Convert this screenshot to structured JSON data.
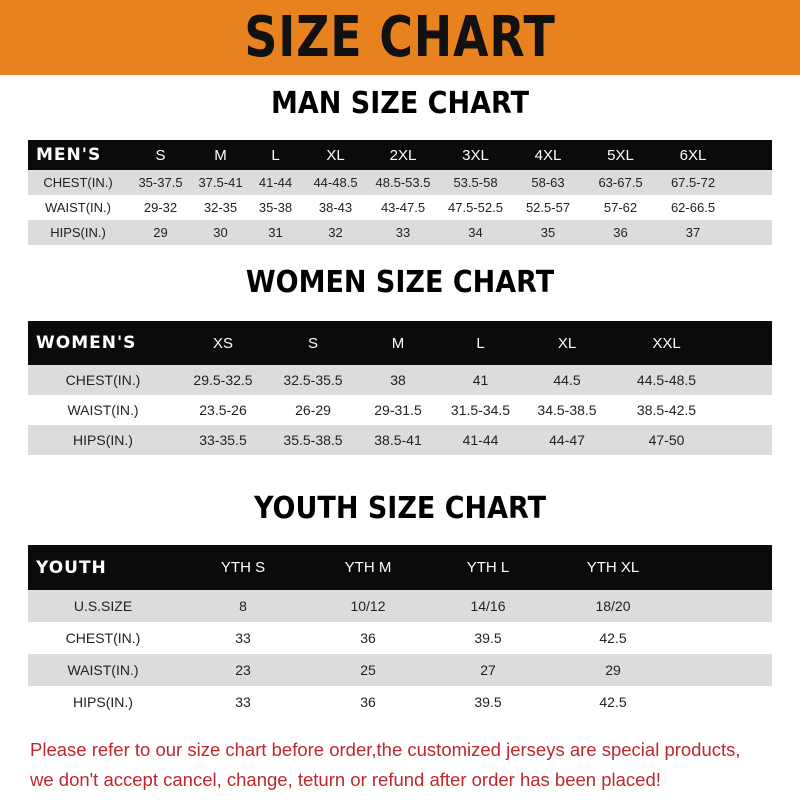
{
  "title": "SIZE CHART",
  "men": {
    "title": "MAN SIZE CHART",
    "header": [
      "MEN'S",
      "S",
      "M",
      "L",
      "XL",
      "2XL",
      "3XL",
      "4XL",
      "5XL",
      "6XL"
    ],
    "rows": [
      [
        "CHEST(IN.)",
        "35-37.5",
        "37.5-41",
        "41-44",
        "44-48.5",
        "48.5-53.5",
        "53.5-58",
        "58-63",
        "63-67.5",
        "67.5-72"
      ],
      [
        "WAIST(IN.)",
        "29-32",
        "32-35",
        "35-38",
        "38-43",
        "43-47.5",
        "47.5-52.5",
        "52.5-57",
        "57-62",
        "62-66.5"
      ],
      [
        "HIPS(IN.)",
        "29",
        "30",
        "31",
        "32",
        "33",
        "34",
        "35",
        "36",
        "37"
      ]
    ]
  },
  "women": {
    "title": "WOMEN SIZE CHART",
    "header": [
      "WOMEN'S",
      "XS",
      "S",
      "M",
      "L",
      "XL",
      "XXL"
    ],
    "rows": [
      [
        "CHEST(IN.)",
        "29.5-32.5",
        "32.5-35.5",
        "38",
        "41",
        "44.5",
        "44.5-48.5"
      ],
      [
        "WAIST(IN.)",
        "23.5-26",
        "26-29",
        "29-31.5",
        "31.5-34.5",
        "34.5-38.5",
        "38.5-42.5"
      ],
      [
        "HIPS(IN.)",
        "33-35.5",
        "35.5-38.5",
        "38.5-41",
        "41-44",
        "44-47",
        "47-50"
      ]
    ]
  },
  "youth": {
    "title": "YOUTH SIZE CHART",
    "header": [
      "YOUTH",
      "YTH S",
      "YTH M",
      "YTH L",
      "YTH XL"
    ],
    "rows": [
      [
        "U.S.SIZE",
        "8",
        "10/12",
        "14/16",
        "18/20"
      ],
      [
        "CHEST(IN.)",
        "33",
        "36",
        "39.5",
        "42.5"
      ],
      [
        "WAIST(IN.)",
        "23",
        "25",
        "27",
        "29"
      ],
      [
        "HIPS(IN.)",
        "33",
        "36",
        "39.5",
        "42.5"
      ]
    ]
  },
  "footer": [
    "Please refer to our size chart before order,the customized jerseys are special products,",
    "we don't accept cancel, change, teturn or refund after order has been placed!"
  ],
  "colors": {
    "banner": "#e8821f",
    "header_row": "#0b0b0b",
    "alt_row": "#dcdcdc",
    "footer_text": "#c0272d"
  }
}
